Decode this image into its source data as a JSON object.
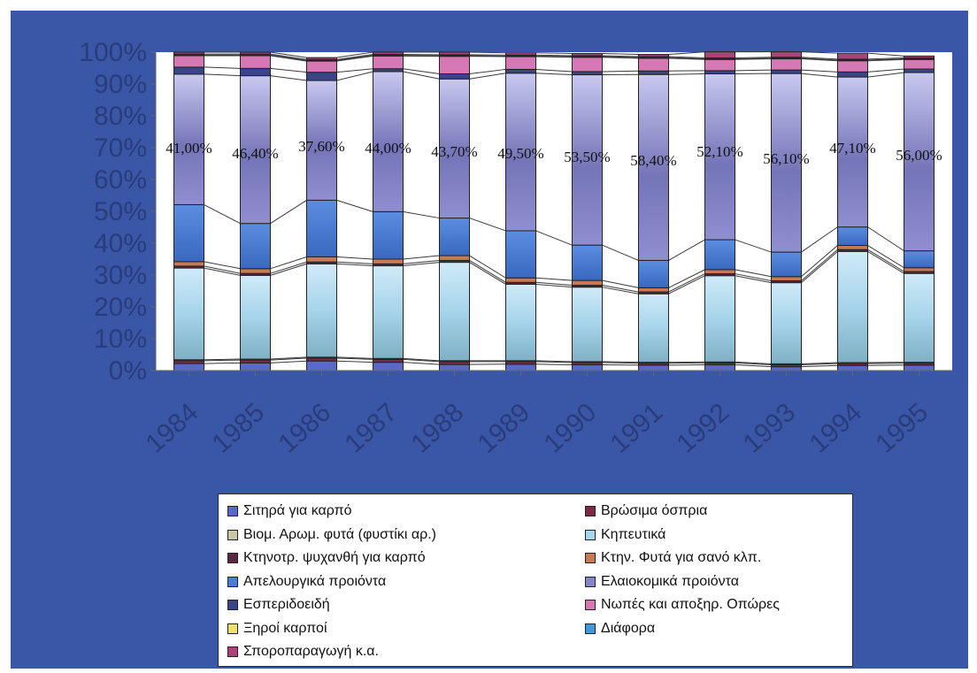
{
  "chart_data": {
    "type": "bar",
    "stacked": "percent",
    "categories": [
      "1984",
      "1985",
      "1986",
      "1987",
      "1988",
      "1989",
      "1990",
      "1991",
      "1992",
      "1993",
      "1994",
      "1995"
    ],
    "ylim": [
      0,
      100
    ],
    "yticks": [
      "0%",
      "10%",
      "20%",
      "30%",
      "40%",
      "50%",
      "60%",
      "70%",
      "80%",
      "90%",
      "100%"
    ],
    "grid": false,
    "legend_position": "bottom",
    "series": [
      {
        "name": "Σιτηρά για καρπό",
        "color": "#5869c9",
        "values": [
          2.2,
          2.4,
          3.0,
          2.6,
          1.9,
          2.0,
          1.8,
          1.7,
          1.8,
          1.2,
          1.6,
          1.7
        ]
      },
      {
        "name": "Βρώσιμα όσπρια",
        "color": "#7a2a44",
        "values": [
          0.9,
          0.9,
          0.9,
          0.9,
          0.9,
          0.8,
          0.7,
          0.6,
          0.6,
          0.6,
          0.6,
          0.6
        ]
      },
      {
        "name": "Βιομ. Αρωμ. φυτά (φυστίκι αρ.)",
        "color": "#c8c8a8",
        "values": [
          0.3,
          0.3,
          0.3,
          0.3,
          0.3,
          0.3,
          0.3,
          0.3,
          0.3,
          0.3,
          0.3,
          0.3
        ]
      },
      {
        "name": "Κηπευτικά",
        "color": "#a8d6ea",
        "values": [
          28.8,
          26.3,
          29.3,
          29.1,
          30.9,
          24.0,
          23.4,
          21.5,
          27.1,
          25.5,
          34.9,
          27.9
        ]
      },
      {
        "name": "Κτηνοτρ. ψυχανθή για καρπό",
        "color": "#5a2840",
        "values": [
          0.6,
          0.6,
          0.6,
          0.6,
          0.6,
          0.6,
          0.6,
          0.6,
          0.6,
          0.6,
          0.6,
          0.6
        ]
      },
      {
        "name": "Κτην. Φυτά για σανό κλπ.",
        "color": "#c87a54",
        "values": [
          1.4,
          1.5,
          1.6,
          1.5,
          1.5,
          1.4,
          1.5,
          1.3,
          1.3,
          1.3,
          1.3,
          1.2
        ]
      },
      {
        "name": "Απελουργικά προιόντα",
        "color": "#4a7ed6",
        "values": [
          17.9,
          14.2,
          17.8,
          14.9,
          11.8,
          14.8,
          11.1,
          8.6,
          9.4,
          7.7,
          5.8,
          5.3
        ]
      },
      {
        "name": "Ελαιοκομικά προιόντα",
        "color": "#8484c8",
        "values": [
          41.0,
          46.4,
          37.6,
          44.0,
          43.7,
          49.5,
          53.5,
          58.4,
          52.1,
          56.1,
          47.1,
          56.0
        ]
      },
      {
        "name": "Εσπεριδοειδή",
        "color": "#3a4488",
        "values": [
          2.2,
          2.3,
          2.6,
          0.9,
          1.6,
          1.2,
          1.0,
          1.1,
          1.0,
          1.1,
          1.6,
          1.1
        ]
      },
      {
        "name": "Νωπές και αποξηρ. Οπώρες",
        "color": "#d678b4",
        "values": [
          3.6,
          4.0,
          3.5,
          4.0,
          5.5,
          4.0,
          4.5,
          4.0,
          3.5,
          3.5,
          3.5,
          3.0
        ]
      },
      {
        "name": "Ξηροί καρποί",
        "color": "#f0e070",
        "values": [
          0.2,
          0.2,
          0.2,
          0.2,
          0.2,
          0.2,
          0.2,
          0.2,
          0.2,
          0.2,
          0.2,
          0.2
        ]
      },
      {
        "name": "Διάφορα",
        "color": "#3d9ae0",
        "values": [
          0.3,
          0.3,
          0.3,
          0.3,
          0.3,
          0.3,
          0.3,
          0.3,
          0.3,
          0.3,
          0.3,
          0.3
        ]
      },
      {
        "name": "Σποροπαραγωγή κ.α.",
        "color": "#a8447a",
        "values": [
          0.6,
          0.6,
          0.6,
          0.7,
          0.8,
          0.7,
          0.7,
          0.7,
          1.9,
          1.7,
          1.9,
          0.6
        ]
      }
    ],
    "data_labels": [
      "41,00%",
      "46,40%",
      "37,60%",
      "44,00%",
      "43,70%",
      "49,50%",
      "53,50%",
      "58,40%",
      "52,10%",
      "56,10%",
      "47,10%",
      "56,00%"
    ]
  },
  "legend": [
    "Σιτηρά για καρπό",
    "Βρώσιμα όσπρια",
    "Βιομ. Αρωμ. φυτά (φυστίκι αρ.)",
    "Κηπευτικά",
    "Κτηνοτρ. ψυχανθή για καρπό",
    "Κτην. Φυτά για σανό κλπ.",
    "Απελουργικά προιόντα",
    "Ελαιοκομικά προιόντα",
    "Εσπεριδοειδή",
    "Νωπές και αποξηρ. Οπώρες",
    "Ξηροί καρποί",
    "Διάφορα",
    "Σποροπαραγωγή κ.α."
  ],
  "colors": {
    "background": "#3a57a7",
    "plot_area": "#ffffff",
    "axis_text": "#2a3c7a"
  }
}
